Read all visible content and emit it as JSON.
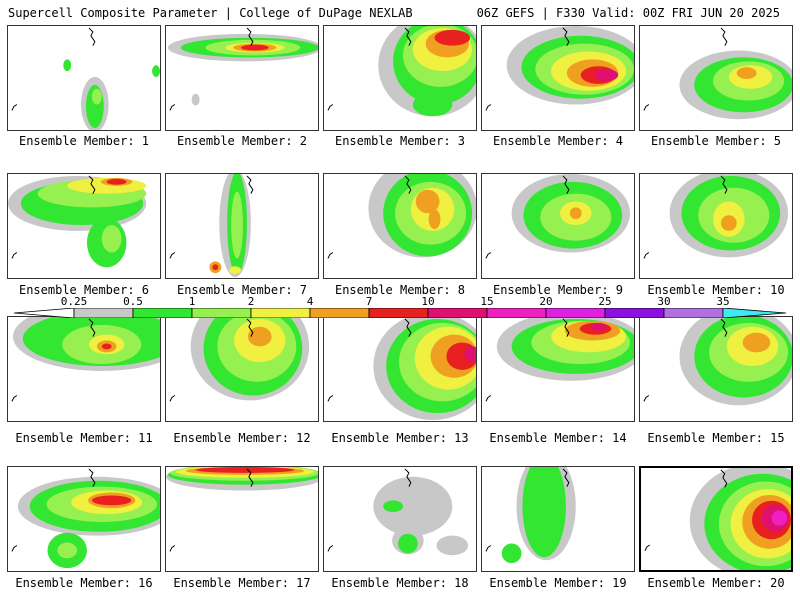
{
  "header": {
    "title_left": "Supercell Composite Parameter | College of DuPage NEXLAB",
    "title_right": "06Z GEFS | F330 Valid: 00Z FRI JUN 20 2025"
  },
  "members": [
    {
      "label": "Ensemble Member: 1"
    },
    {
      "label": "Ensemble Member: 2"
    },
    {
      "label": "Ensemble Member: 3"
    },
    {
      "label": "Ensemble Member: 4"
    },
    {
      "label": "Ensemble Member: 5"
    },
    {
      "label": "Ensemble Member: 6"
    },
    {
      "label": "Ensemble Member: 7"
    },
    {
      "label": "Ensemble Member: 8"
    },
    {
      "label": "Ensemble Member: 9"
    },
    {
      "label": "Ensemble Member: 10"
    },
    {
      "label": "Ensemble Member: 11"
    },
    {
      "label": "Ensemble Member: 12"
    },
    {
      "label": "Ensemble Member: 13"
    },
    {
      "label": "Ensemble Member: 14"
    },
    {
      "label": "Ensemble Member: 15"
    },
    {
      "label": "Ensemble Member: 16"
    },
    {
      "label": "Ensemble Member: 17"
    },
    {
      "label": "Ensemble Member: 18"
    },
    {
      "label": "Ensemble Member: 19"
    },
    {
      "label": "Ensemble Member: 20"
    }
  ],
  "colorbar": {
    "labels": [
      "0.25",
      "0.5",
      "1",
      "2",
      "4",
      "7",
      "10",
      "15",
      "20",
      "25",
      "30",
      "35"
    ],
    "colors": [
      "#c8c8c8",
      "#32e632",
      "#96f050",
      "#f0f040",
      "#f0a020",
      "#e82020",
      "#e01070",
      "#f020c0",
      "#e020e0",
      "#8c10e0",
      "#b070e0",
      "#40e8f0"
    ]
  }
}
